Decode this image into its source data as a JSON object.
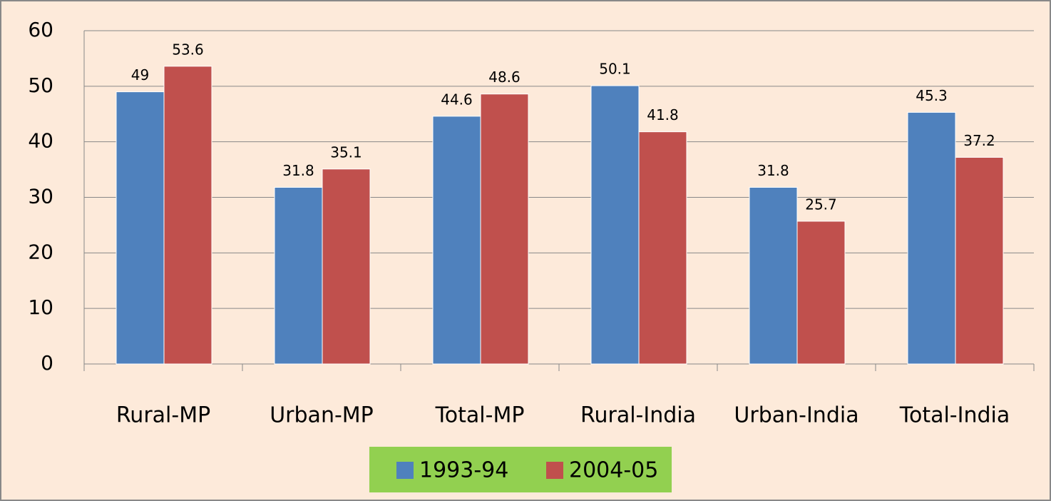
{
  "chart_data": {
    "type": "bar",
    "categories": [
      "Rural-MP",
      "Urban-MP",
      "Total-MP",
      "Rural-India",
      "Urban-India",
      "Total-India"
    ],
    "series": [
      {
        "name": "1993-94",
        "color": "#4F81BD",
        "values": [
          49,
          31.8,
          44.6,
          50.1,
          31.8,
          45.3
        ]
      },
      {
        "name": "2004-05",
        "color": "#C0504D",
        "values": [
          53.6,
          35.1,
          48.6,
          41.8,
          25.7,
          37.2
        ]
      }
    ],
    "ylim": [
      0,
      60
    ],
    "yticks": [
      0,
      10,
      20,
      30,
      40,
      50,
      60
    ],
    "grid": true,
    "legend": "bottom"
  }
}
